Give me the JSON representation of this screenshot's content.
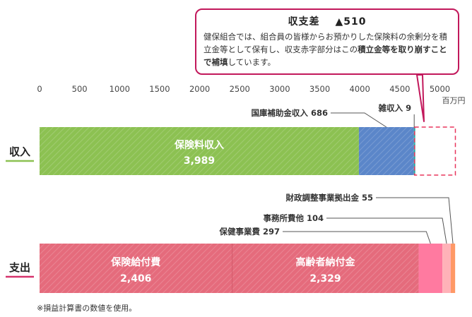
{
  "callout": {
    "title": "収支差",
    "amount": "▲510",
    "text_1": "健保組合では、組合員の皆様からお預かりした保険料の余剰分を積立金等として保有し、収支赤字部分はこの",
    "text_bold": "積立金等を取り崩すことで補填",
    "text_2": "しています。"
  },
  "footnote": "※損益計算書の数値を使用。",
  "colors": {
    "income_premium": "#8cc152",
    "income_subsidy": "#5b86c9",
    "income_misc": "#1fa9a0",
    "expense_benefit": "#e56b7c",
    "expense_elderly": "#e56b7c",
    "expense_health": "#ff7aa0",
    "expense_office": "#ffb2b8",
    "expense_finance": "#ff9966",
    "deficit_border": "#e8365d",
    "income_underline": "#8cc152",
    "expense_underline": "#d6336c"
  },
  "chart_data": {
    "type": "bar",
    "orientation": "horizontal",
    "stacked": true,
    "unit_label": "百万円",
    "xlim": [
      0,
      5000
    ],
    "ticks": [
      0,
      500,
      1000,
      1500,
      2000,
      2500,
      3000,
      3500,
      4000,
      4500,
      5000
    ],
    "tick_labels": [
      "0",
      "500",
      "1000",
      "1500",
      "2000",
      "2500",
      "3000",
      "3500",
      "4000",
      "4500",
      "5000"
    ],
    "categories": [
      "収入",
      "支出"
    ],
    "income": [
      {
        "label": "保険料収入",
        "value_text": "3,989",
        "value": 3989,
        "label_inside": true
      },
      {
        "label": "国庫補助金収入 686",
        "value": 686,
        "label_inside": false
      },
      {
        "label": "雑収入 9",
        "value": 9,
        "label_inside": false
      }
    ],
    "income_deficit": {
      "value": 510
    },
    "expense": [
      {
        "label": "保険給付費",
        "value_text": "2,406",
        "value": 2406,
        "label_inside": true
      },
      {
        "label": "高齢者納付金",
        "value_text": "2,329",
        "value": 2329,
        "label_inside": true
      },
      {
        "label": "保健事業費 297",
        "value": 297,
        "label_inside": false
      },
      {
        "label": "事務所費他 104",
        "value": 104,
        "label_inside": false
      },
      {
        "label": "財政調整事業拠出金 55",
        "value": 55,
        "label_inside": false
      }
    ]
  }
}
